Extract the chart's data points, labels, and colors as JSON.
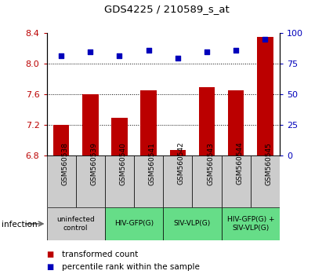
{
  "title": "GDS4225 / 210589_s_at",
  "samples": [
    "GSM560538",
    "GSM560539",
    "GSM560540",
    "GSM560541",
    "GSM560542",
    "GSM560543",
    "GSM560544",
    "GSM560545"
  ],
  "bar_values": [
    7.2,
    7.6,
    7.3,
    7.65,
    6.87,
    7.7,
    7.65,
    8.35
  ],
  "dot_values": [
    82,
    85,
    82,
    86,
    80,
    85,
    86,
    95
  ],
  "bar_color": "#BB0000",
  "dot_color": "#0000BB",
  "ylim_left": [
    6.8,
    8.4
  ],
  "ylim_right": [
    0,
    100
  ],
  "yticks_left": [
    6.8,
    7.2,
    7.6,
    8.0,
    8.4
  ],
  "yticks_right": [
    0,
    25,
    50,
    75,
    100
  ],
  "grid_values": [
    7.2,
    7.6,
    8.0
  ],
  "infection_groups": [
    {
      "label": "uninfected\ncontrol",
      "start": 0,
      "end": 2,
      "color": "#cccccc"
    },
    {
      "label": "HIV-GFP(G)",
      "start": 2,
      "end": 4,
      "color": "#66dd88"
    },
    {
      "label": "SIV-VLP(G)",
      "start": 4,
      "end": 6,
      "color": "#66dd88"
    },
    {
      "label": "HIV-GFP(G) +\nSIV-VLP(G)",
      "start": 6,
      "end": 8,
      "color": "#66dd88"
    }
  ],
  "sample_box_color": "#cccccc",
  "legend_items": [
    {
      "label": "transformed count",
      "color": "#BB0000"
    },
    {
      "label": "percentile rank within the sample",
      "color": "#0000BB"
    }
  ],
  "infection_label": "infection",
  "bar_width": 0.55
}
